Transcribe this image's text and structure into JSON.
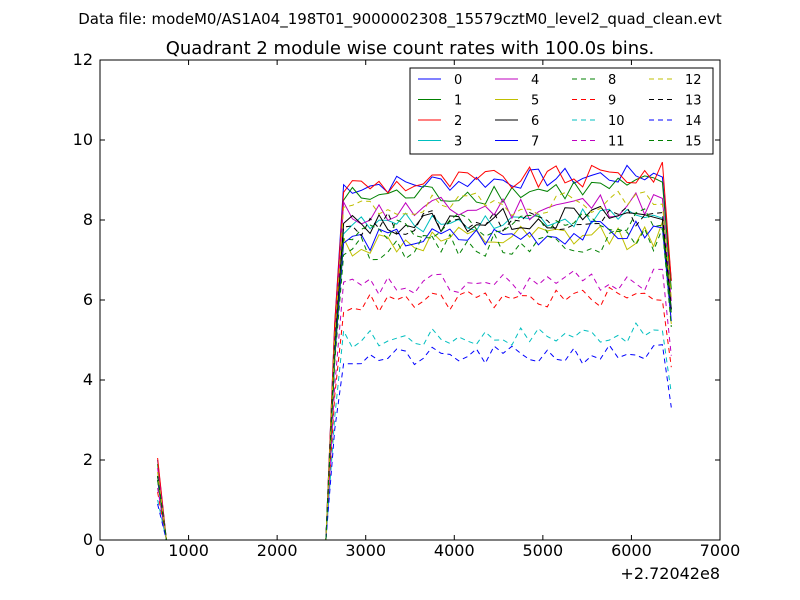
{
  "chart_data": {
    "type": "line",
    "suptitle": "Data file: modeM0/AS1A04_198T01_9000002308_15579cztM0_level2_quad_clean.evt",
    "title": "Quadrant 2 module wise count rates with 100.0s bins.",
    "xlabel": "",
    "ylabel": "",
    "x_offset_label": "+2.72042e8",
    "xlim": [
      0,
      7000
    ],
    "ylim": [
      0,
      12
    ],
    "xticks": [
      0,
      1000,
      2000,
      3000,
      4000,
      5000,
      6000,
      7000
    ],
    "yticks": [
      0,
      2,
      4,
      6,
      8,
      10,
      12
    ],
    "grid": false,
    "legend_position": "top-right",
    "legend_columns": 4,
    "x": {
      "start": 650,
      "end": 6450,
      "step": 100
    },
    "series": [
      {
        "name": "0",
        "color": "#0000ff",
        "dash": "solid",
        "level": 9.0,
        "amp": 0.25,
        "peak": 2.0
      },
      {
        "name": "1",
        "color": "#008000",
        "dash": "solid",
        "level": 8.7,
        "amp": 0.3,
        "peak": 1.9
      },
      {
        "name": "2",
        "color": "#ff0000",
        "dash": "solid",
        "level": 9.0,
        "amp": 0.3,
        "peak": 2.05
      },
      {
        "name": "3",
        "color": "#00bfbf",
        "dash": "solid",
        "level": 8.0,
        "amp": 0.25,
        "peak": 1.6
      },
      {
        "name": "4",
        "color": "#bf00bf",
        "dash": "solid",
        "level": 8.3,
        "amp": 0.35,
        "peak": 1.8
      },
      {
        "name": "5",
        "color": "#bfbf00",
        "dash": "solid",
        "level": 7.5,
        "amp": 0.35,
        "peak": 1.5
      },
      {
        "name": "6",
        "color": "#000000",
        "dash": "solid",
        "level": 8.0,
        "amp": 0.3,
        "peak": 1.6
      },
      {
        "name": "7",
        "color": "#0000ff",
        "dash": "solid",
        "level": 7.6,
        "amp": 0.3,
        "peak": 1.5
      },
      {
        "name": "8",
        "color": "#008000",
        "dash": "dashed",
        "level": 7.4,
        "amp": 0.3,
        "peak": 1.5
      },
      {
        "name": "9",
        "color": "#ff0000",
        "dash": "dashed",
        "level": 6.0,
        "amp": 0.25,
        "peak": 1.2
      },
      {
        "name": "10",
        "color": "#00bfbf",
        "dash": "dashed",
        "level": 5.1,
        "amp": 0.25,
        "peak": 1.0
      },
      {
        "name": "11",
        "color": "#bf00bf",
        "dash": "dashed",
        "level": 6.4,
        "amp": 0.3,
        "peak": 1.3
      },
      {
        "name": "12",
        "color": "#bfbf00",
        "dash": "dashed",
        "level": 8.4,
        "amp": 0.3,
        "peak": 1.7
      },
      {
        "name": "13",
        "color": "#000000",
        "dash": "dashed",
        "level": 8.0,
        "amp": 0.3,
        "peak": 1.6
      },
      {
        "name": "14",
        "color": "#0000ff",
        "dash": "dashed",
        "level": 4.6,
        "amp": 0.25,
        "peak": 0.9
      },
      {
        "name": "15",
        "color": "#008000",
        "dash": "dashed",
        "level": 7.9,
        "amp": 0.3,
        "peak": 1.6
      }
    ]
  }
}
